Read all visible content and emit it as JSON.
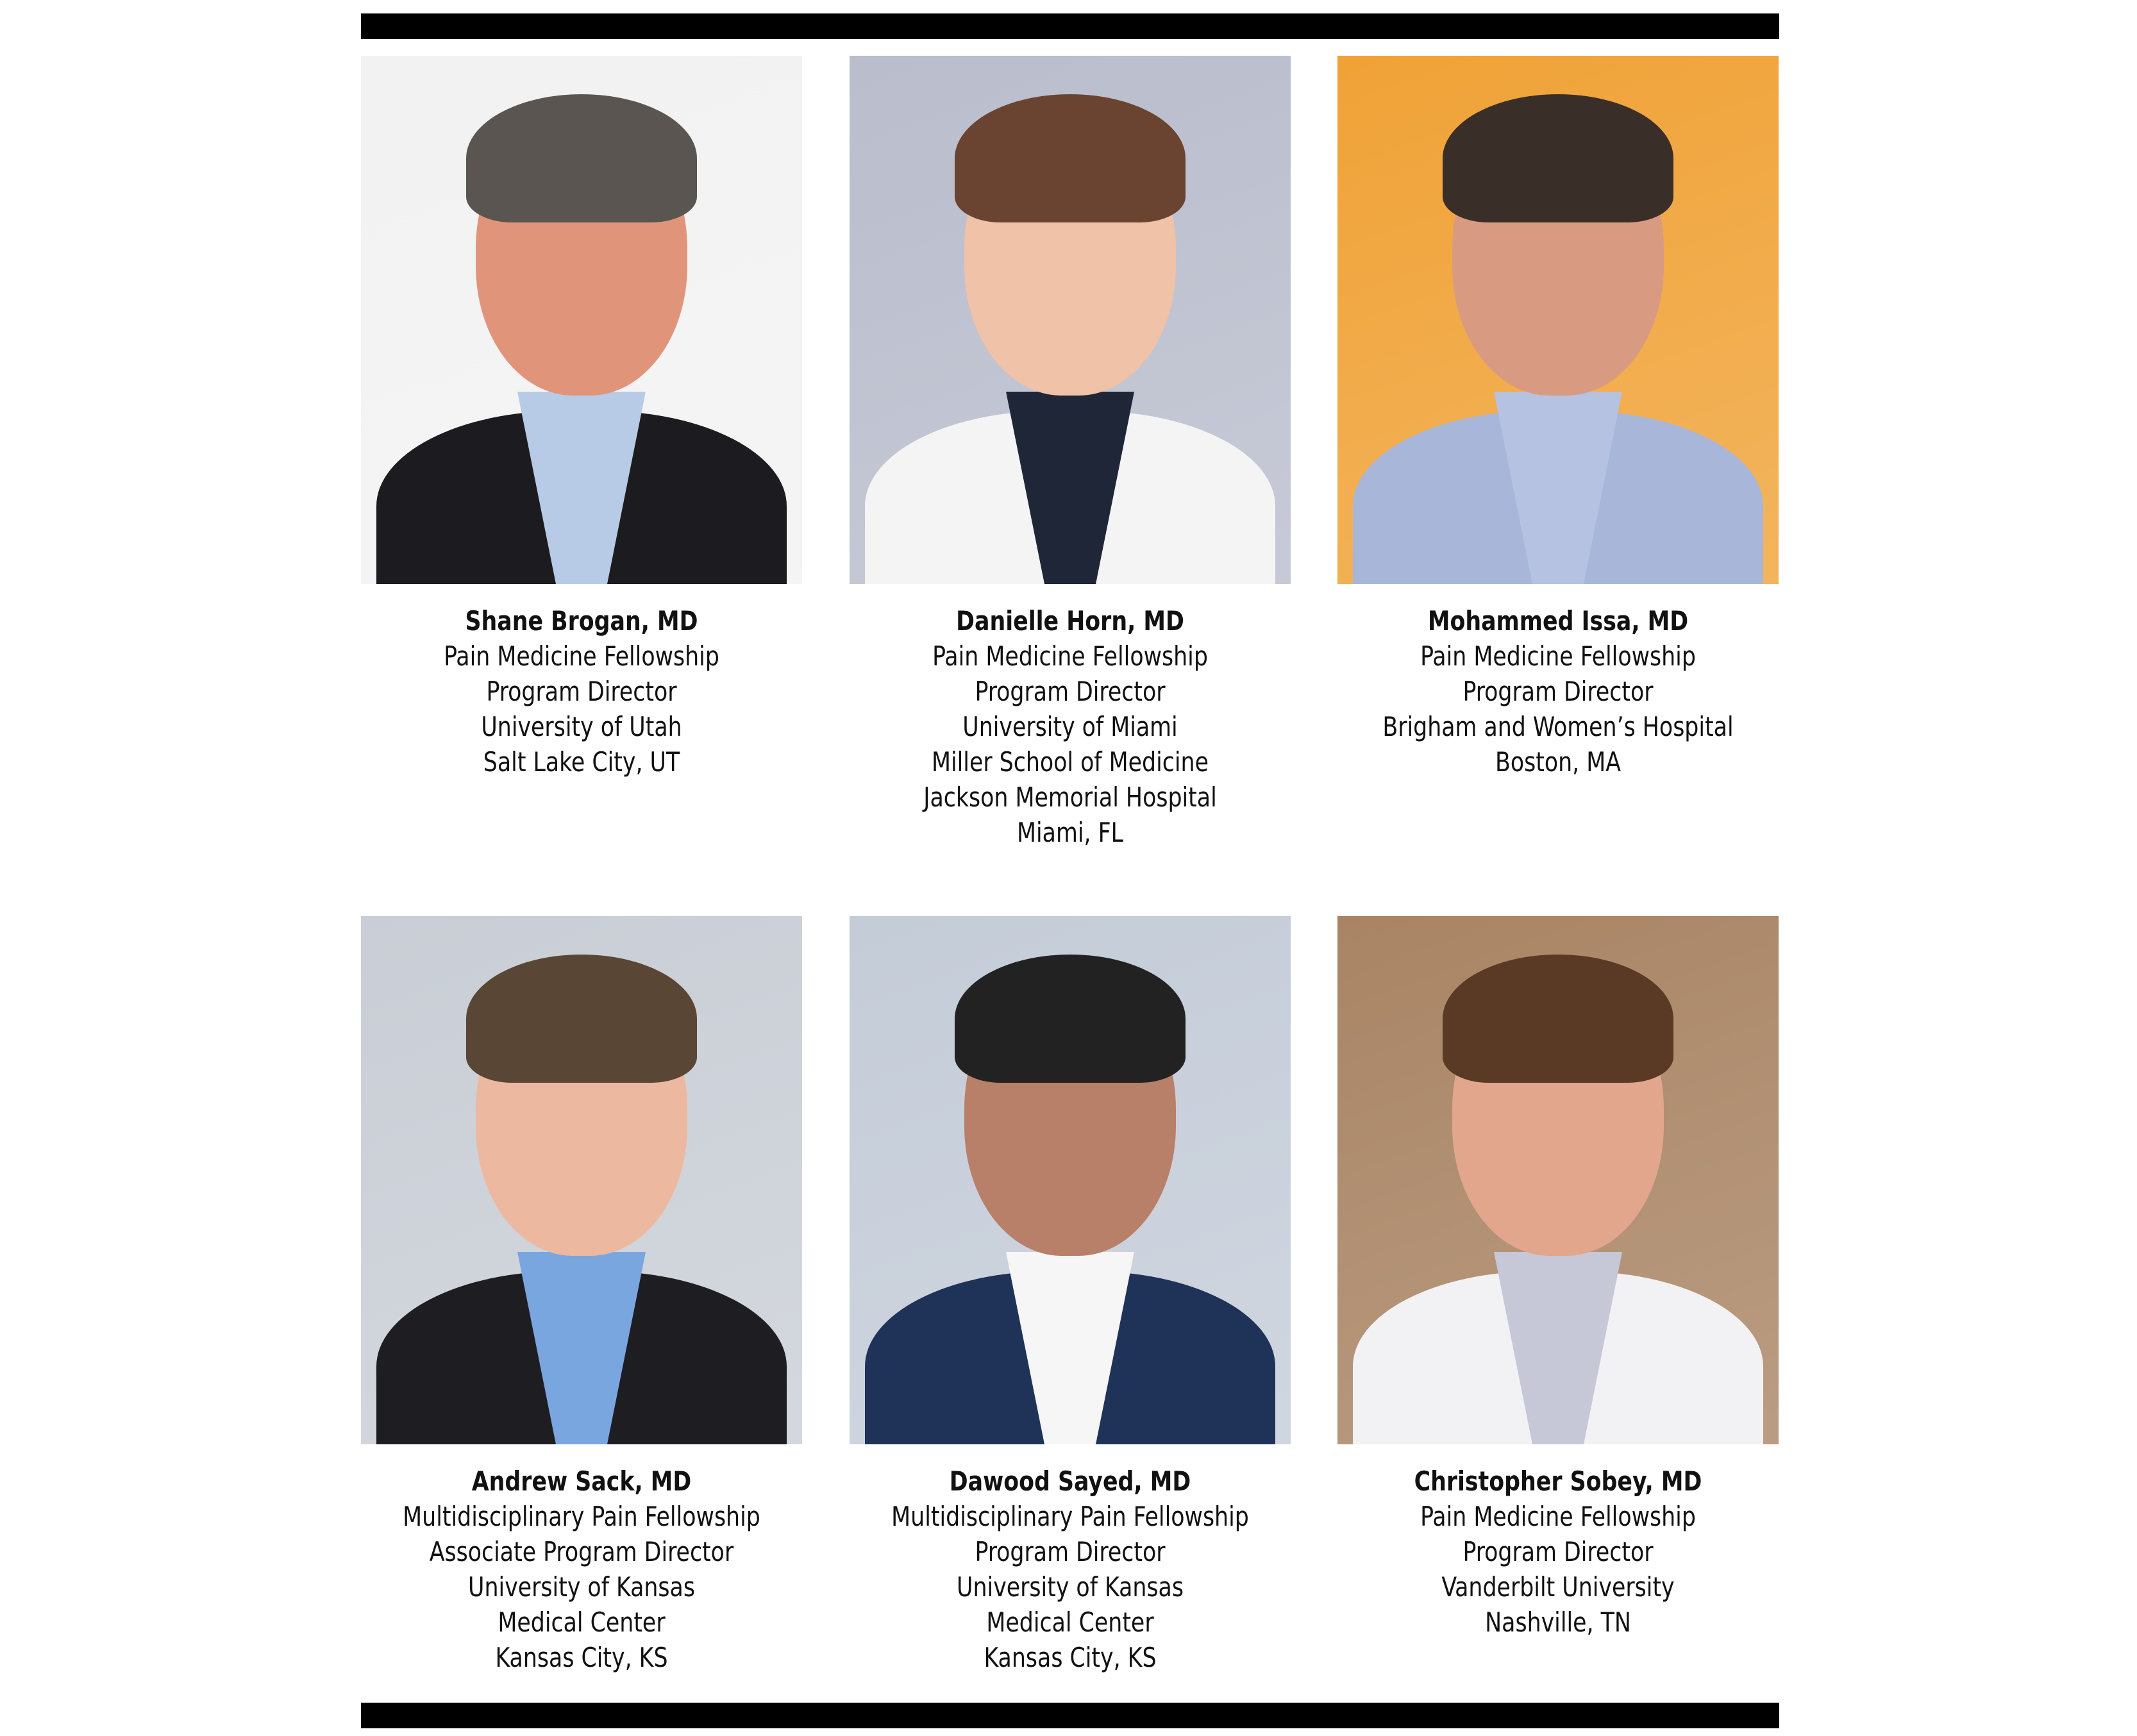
{
  "people": [
    {
      "name": "Shane Brogan, MD",
      "lines": [
        "Pain Medicine Fellowship",
        "Program Director",
        "University of Utah",
        "Salt Lake City, UT"
      ],
      "bg": "#f2f2f2",
      "skin": "#e0957a",
      "hair": "#5a5550",
      "suit": "#1c1c20",
      "shirt": "#b8cbe6"
    },
    {
      "name": "Danielle Horn, MD",
      "lines": [
        "Pain Medicine Fellowship",
        "Program Director",
        "University of Miami",
        "Miller School of Medicine",
        "Jackson Memorial Hospital",
        "Miami, FL"
      ],
      "bg": "#b9bdcc",
      "skin": "#f0c2a8",
      "hair": "#6a4430",
      "suit": "#f4f4f4",
      "shirt": "#1e2638"
    },
    {
      "name": "Mohammed Issa, MD",
      "lines": [
        "Pain Medicine Fellowship",
        "Program Director",
        "Brigham and Women’s Hospital",
        "Boston, MA"
      ],
      "bg": "#f0a236",
      "skin": "#d99a82",
      "hair": "#3a2e28",
      "suit": "#a8b6da",
      "shirt": "#b6c2e2"
    },
    {
      "name": "Andrew Sack, MD",
      "lines": [
        "Multidisciplinary Pain Fellowship",
        "Associate Program Director",
        "University of Kansas",
        "Medical Center",
        "Kansas City, KS"
      ],
      "bg": "#c9ced6",
      "skin": "#ecb8a0",
      "hair": "#5a4634",
      "suit": "#1e1e22",
      "shirt": "#7aa6e0"
    },
    {
      "name": "Dawood Sayed, MD",
      "lines": [
        "Multidisciplinary Pain Fellowship",
        "Program Director",
        "University of Kansas",
        "Medical Center",
        "Kansas City, KS"
      ],
      "bg": "#c4ccd8",
      "skin": "#b88068",
      "hair": "#222",
      "suit": "#1f3358",
      "shirt": "#f6f6f6"
    },
    {
      "name": "Christopher Sobey, MD",
      "lines": [
        "Pain Medicine Fellowship",
        "Program Director",
        "Vanderbilt University",
        "Nashville, TN"
      ],
      "bg": "#a98464",
      "skin": "#e2a68c",
      "hair": "#5a3a24",
      "suit": "#f2f2f4",
      "shirt": "#c6c8d8"
    }
  ]
}
